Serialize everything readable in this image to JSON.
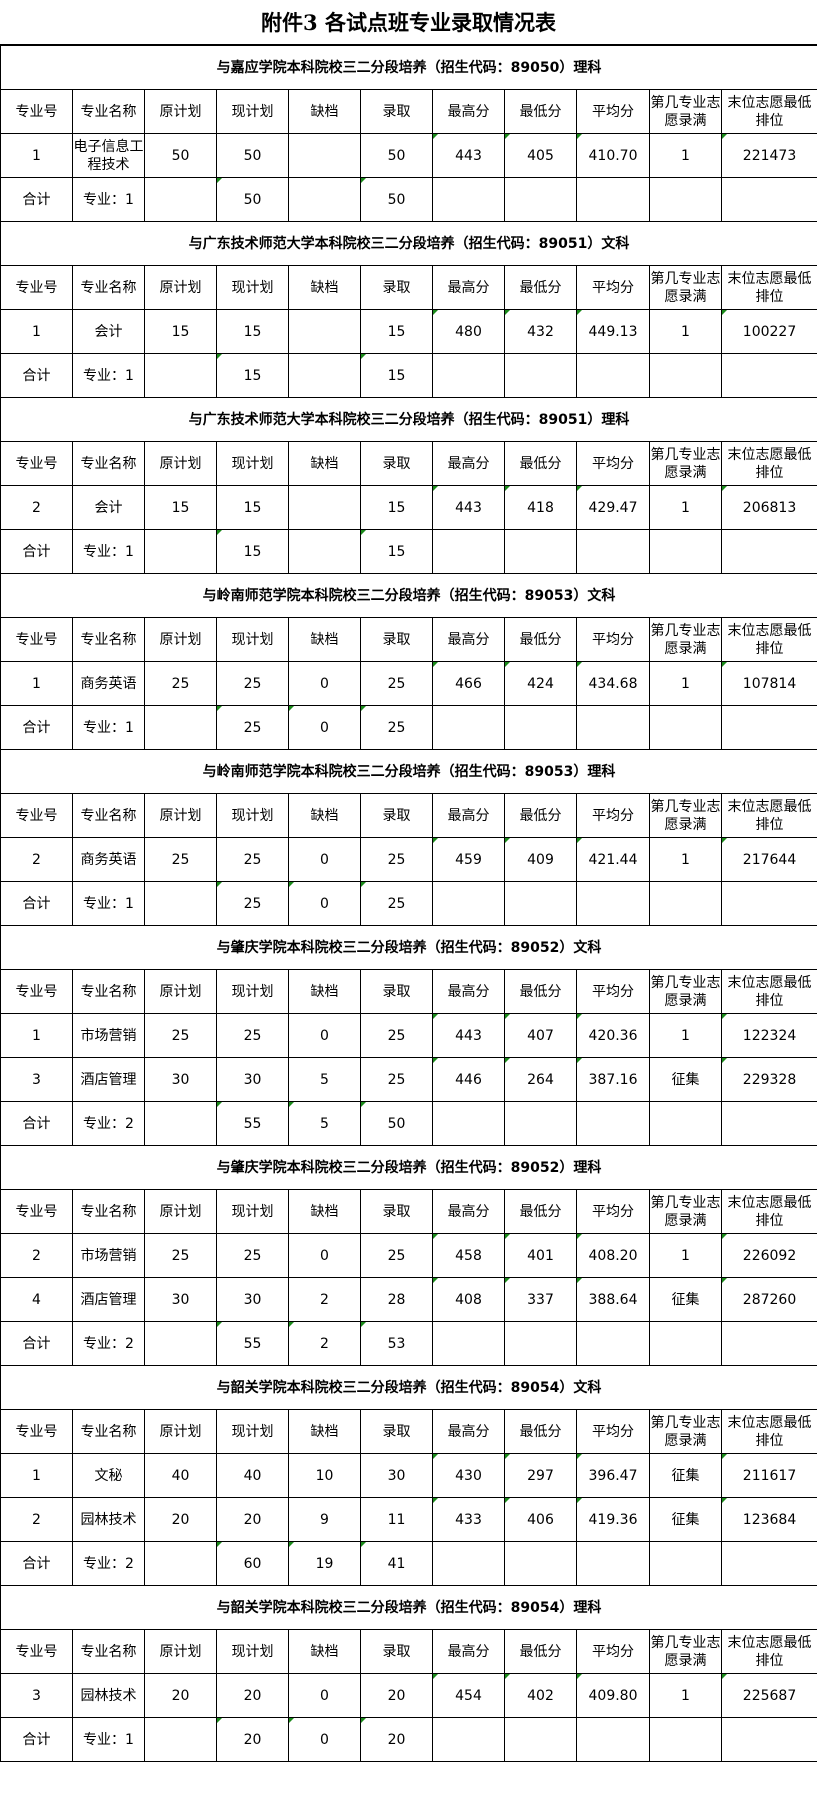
{
  "title": "附件3  各试点班专业录取情况表",
  "columns": [
    "专业号",
    "专业名称",
    "原计划",
    "现计划",
    "缺档",
    "录取",
    "最高分",
    "最低分",
    "平均分",
    "第几专业志愿录满",
    "末位志愿最低排位"
  ],
  "sections": [
    {
      "header": "与嘉应学院本科院校三二分段培养（招生代码：89050）理科",
      "rows": [
        [
          "1",
          "电子信息工程技术",
          "50",
          "50",
          "",
          "50",
          "443",
          "405",
          "410.70",
          "1",
          "221473"
        ]
      ],
      "total": [
        "合计",
        "专业：1",
        "",
        "50",
        "",
        "50",
        "",
        "",
        "",
        "",
        ""
      ]
    },
    {
      "header": "与广东技术师范大学本科院校三二分段培养（招生代码：89051）文科",
      "rows": [
        [
          "1",
          "会计",
          "15",
          "15",
          "",
          "15",
          "480",
          "432",
          "449.13",
          "1",
          "100227"
        ]
      ],
      "total": [
        "合计",
        "专业：1",
        "",
        "15",
        "",
        "15",
        "",
        "",
        "",
        "",
        ""
      ]
    },
    {
      "header": "与广东技术师范大学本科院校三二分段培养（招生代码：89051）理科",
      "rows": [
        [
          "2",
          "会计",
          "15",
          "15",
          "",
          "15",
          "443",
          "418",
          "429.47",
          "1",
          "206813"
        ]
      ],
      "total": [
        "合计",
        "专业：1",
        "",
        "15",
        "",
        "15",
        "",
        "",
        "",
        "",
        ""
      ]
    },
    {
      "header": "与岭南师范学院本科院校三二分段培养（招生代码：89053）文科",
      "rows": [
        [
          "1",
          "商务英语",
          "25",
          "25",
          "0",
          "25",
          "466",
          "424",
          "434.68",
          "1",
          "107814"
        ]
      ],
      "total": [
        "合计",
        "专业：1",
        "",
        "25",
        "0",
        "25",
        "",
        "",
        "",
        "",
        ""
      ]
    },
    {
      "header": "与岭南师范学院本科院校三二分段培养（招生代码：89053）理科",
      "rows": [
        [
          "2",
          "商务英语",
          "25",
          "25",
          "0",
          "25",
          "459",
          "409",
          "421.44",
          "1",
          "217644"
        ]
      ],
      "total": [
        "合计",
        "专业：1",
        "",
        "25",
        "0",
        "25",
        "",
        "",
        "",
        "",
        ""
      ]
    },
    {
      "header": "与肇庆学院本科院校三二分段培养（招生代码：89052）文科",
      "rows": [
        [
          "1",
          "市场营销",
          "25",
          "25",
          "0",
          "25",
          "443",
          "407",
          "420.36",
          "1",
          "122324"
        ],
        [
          "3",
          "酒店管理",
          "30",
          "30",
          "5",
          "25",
          "446",
          "264",
          "387.16",
          "征集",
          "229328"
        ]
      ],
      "total": [
        "合计",
        "专业：2",
        "",
        "55",
        "5",
        "50",
        "",
        "",
        "",
        "",
        ""
      ]
    },
    {
      "header": "与肇庆学院本科院校三二分段培养（招生代码：89052）理科",
      "rows": [
        [
          "2",
          "市场营销",
          "25",
          "25",
          "0",
          "25",
          "458",
          "401",
          "408.20",
          "1",
          "226092"
        ],
        [
          "4",
          "酒店管理",
          "30",
          "30",
          "2",
          "28",
          "408",
          "337",
          "388.64",
          "征集",
          "287260"
        ]
      ],
      "total": [
        "合计",
        "专业：2",
        "",
        "55",
        "2",
        "53",
        "",
        "",
        "",
        "",
        ""
      ]
    },
    {
      "header": "与韶关学院本科院校三二分段培养（招生代码：89054）文科",
      "rows": [
        [
          "1",
          "文秘",
          "40",
          "40",
          "10",
          "30",
          "430",
          "297",
          "396.47",
          "征集",
          "211617"
        ],
        [
          "2",
          "园林技术",
          "20",
          "20",
          "9",
          "11",
          "433",
          "406",
          "419.36",
          "征集",
          "123684"
        ]
      ],
      "total": [
        "合计",
        "专业：2",
        "",
        "60",
        "19",
        "41",
        "",
        "",
        "",
        "",
        ""
      ]
    },
    {
      "header": "与韶关学院本科院校三二分段培养（招生代码：89054）理科",
      "rows": [
        [
          "3",
          "园林技术",
          "20",
          "20",
          "0",
          "20",
          "454",
          "402",
          "409.80",
          "1",
          "225687"
        ]
      ],
      "total": [
        "合计",
        "专业：1",
        "",
        "20",
        "0",
        "20",
        "",
        "",
        "",
        "",
        ""
      ]
    }
  ]
}
